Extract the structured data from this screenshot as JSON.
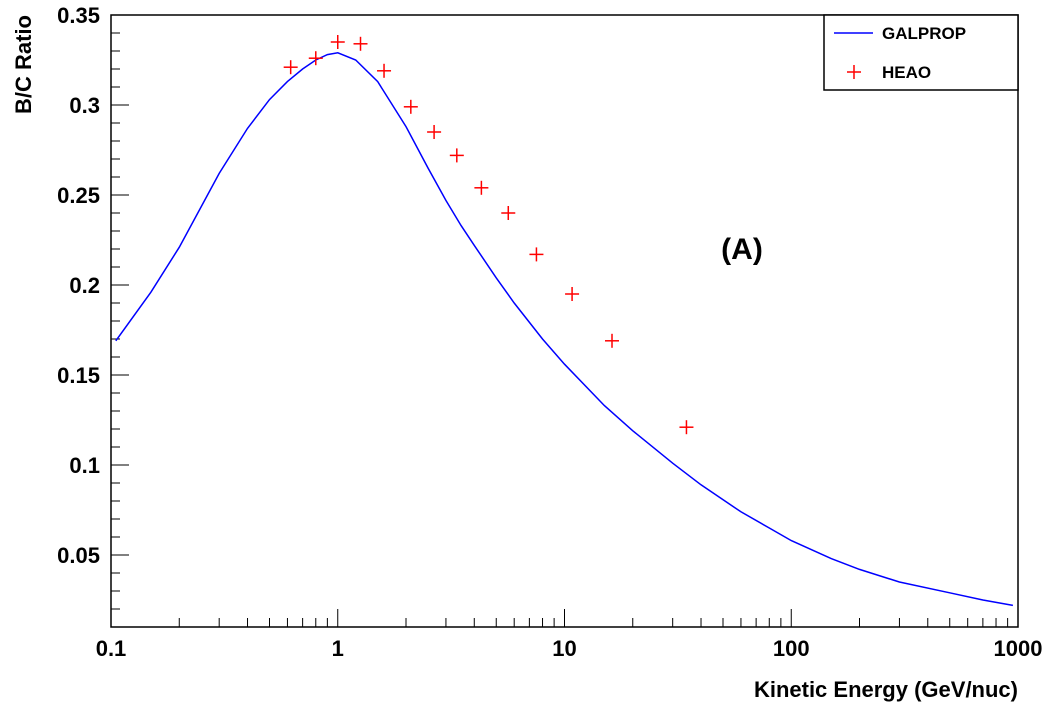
{
  "chart_data": {
    "type": "scatter",
    "xlabel": "Kinetic Energy (GeV/nuc)",
    "ylabel": "B/C Ratio",
    "xscale": "log",
    "xlim": [
      0.1,
      1000
    ],
    "ylim": [
      0.01,
      0.35
    ],
    "x_tick_labels": [
      "0.1",
      "1",
      "10",
      "100",
      "1000"
    ],
    "y_tick_labels": [
      "0.05",
      "0.1",
      "0.15",
      "0.2",
      "0.25",
      "0.3",
      "0.35"
    ],
    "annotation": "(A)",
    "legend_position": "top-right",
    "grid": false,
    "series": [
      {
        "name": "GALPROP",
        "style": "line",
        "color": "#0000ff",
        "x": [
          0.105,
          0.15,
          0.2,
          0.3,
          0.4,
          0.5,
          0.6,
          0.7,
          0.8,
          0.9,
          1.0,
          1.2,
          1.5,
          2.0,
          2.5,
          3.0,
          3.5,
          4.0,
          5.0,
          6.0,
          8.0,
          10,
          15,
          20,
          30,
          40,
          60,
          80,
          100,
          150,
          200,
          300,
          500,
          700,
          950
        ],
        "y": [
          0.169,
          0.196,
          0.221,
          0.262,
          0.287,
          0.303,
          0.313,
          0.32,
          0.325,
          0.328,
          0.329,
          0.325,
          0.313,
          0.288,
          0.265,
          0.247,
          0.233,
          0.222,
          0.204,
          0.19,
          0.17,
          0.156,
          0.133,
          0.119,
          0.101,
          0.089,
          0.074,
          0.065,
          0.058,
          0.048,
          0.042,
          0.035,
          0.029,
          0.025,
          0.022
        ]
      },
      {
        "name": "HEAO",
        "style": "marker",
        "color": "#ff0000",
        "x": [
          0.62,
          0.8,
          1.0,
          1.26,
          1.6,
          2.1,
          2.66,
          3.35,
          4.3,
          5.65,
          7.52,
          10.8,
          16.2,
          34.5
        ],
        "y": [
          0.321,
          0.326,
          0.335,
          0.334,
          0.319,
          0.299,
          0.285,
          0.272,
          0.254,
          0.24,
          0.217,
          0.195,
          0.169,
          0.121
        ]
      }
    ]
  },
  "colors": {
    "axis": "#000000",
    "galprop": "#0000ff",
    "heao": "#ff0000"
  }
}
